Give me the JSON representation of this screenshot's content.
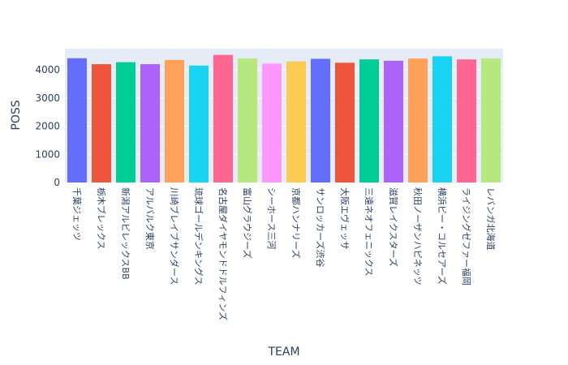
{
  "chart_data": {
    "type": "bar",
    "xlabel": "TEAM",
    "ylabel": "POSS",
    "ylim": [
      0,
      4750
    ],
    "yticks": [
      0,
      1000,
      2000,
      3000,
      4000
    ],
    "grid": true,
    "categories": [
      "千葉ジェッツ",
      "栃木ブレックス",
      "新潟アルビレックスBB",
      "アルバルク東京",
      "川崎ブレイブサンダース",
      "琉球ゴールデンキングス",
      "名古屋ダイヤモンドドルフィンズ",
      "富山グラウジーズ",
      "シーホース三河",
      "京都ハンナリーズ",
      "サンロッカーズ渋谷",
      "大阪エヴェッサ",
      "三遠ネオフェニックス",
      "滋賀レイクスターズ",
      "秋田ノーザンハピネッツ",
      "横浜ビー・コルセアーズ",
      "ライジングゼファー福岡",
      "レバンガ北海道"
    ],
    "values": [
      4410,
      4200,
      4270,
      4200,
      4350,
      4150,
      4530,
      4400,
      4220,
      4300,
      4390,
      4250,
      4370,
      4320,
      4400,
      4480,
      4370,
      4400
    ],
    "colors": [
      "#636efa",
      "#EF553B",
      "#00cc96",
      "#ab63fa",
      "#FFA15A",
      "#19d3f3",
      "#FF6692",
      "#B6E880",
      "#FF97FF",
      "#FECB52",
      "#636efa",
      "#EF553B",
      "#00cc96",
      "#ab63fa",
      "#FFA15A",
      "#19d3f3",
      "#FF6692",
      "#B6E880"
    ]
  }
}
